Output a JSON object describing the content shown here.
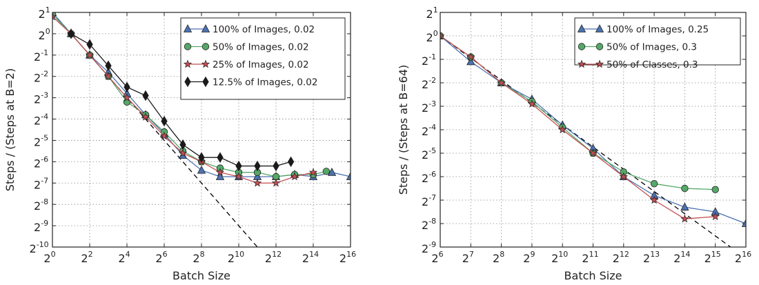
{
  "chart_data": [
    {
      "type": "line",
      "xlabel": "Batch Size",
      "ylabel": "Steps / (Steps at B=2)",
      "xscale": "log2",
      "yscale": "log2",
      "xlim_exp": [
        0,
        16
      ],
      "ylim_exp": [
        -10,
        1
      ],
      "xtick_exps": [
        0,
        2,
        4,
        6,
        8,
        10,
        12,
        14,
        16
      ],
      "ytick_exps": [
        1,
        0,
        -1,
        -2,
        -3,
        -4,
        -5,
        -6,
        -7,
        -8,
        -9,
        -10
      ],
      "grid": true,
      "legend_position": "top-right",
      "reference_line": {
        "style": "dashed",
        "color": "#000000",
        "x_exp": [
          0,
          11
        ],
        "y_exp": [
          1,
          -10
        ]
      },
      "series": [
        {
          "name": "100% of Images, 0.02",
          "marker": "triangle",
          "color": "#4c72b0",
          "x_exp": [
            0,
            1,
            2,
            3,
            4,
            5,
            6,
            7,
            8,
            9,
            10,
            11,
            12,
            13,
            14,
            15,
            16
          ],
          "y_exp": [
            1.0,
            0.0,
            -1.0,
            -1.8,
            -2.8,
            -3.8,
            -4.7,
            -5.7,
            -6.4,
            -6.7,
            -6.7,
            -6.7,
            -6.7,
            -6.6,
            -6.7,
            -6.5,
            -6.7
          ]
        },
        {
          "name": "50% of Images, 0.02",
          "marker": "circle",
          "color": "#55a868",
          "x_exp": [
            0,
            1,
            2,
            3,
            4,
            5,
            6,
            7,
            8,
            9,
            10,
            11,
            12,
            13,
            14,
            14.7
          ],
          "y_exp": [
            0.9,
            0.0,
            -1.0,
            -2.0,
            -3.2,
            -3.8,
            -4.6,
            -5.5,
            -6.0,
            -6.3,
            -6.5,
            -6.5,
            -6.7,
            -6.6,
            -6.6,
            -6.45
          ]
        },
        {
          "name": "25% of Images, 0.02",
          "marker": "star",
          "color": "#c44e52",
          "x_exp": [
            0,
            1,
            2,
            3,
            4,
            5,
            6,
            7,
            8,
            9,
            10,
            11,
            12,
            13,
            14
          ],
          "y_exp": [
            0.8,
            0.0,
            -1.0,
            -2.0,
            -3.0,
            -3.9,
            -4.8,
            -5.6,
            -6.0,
            -6.5,
            -6.7,
            -7.0,
            -7.0,
            -6.7,
            -6.5
          ]
        },
        {
          "name": "12.5% of Images, 0.02",
          "marker": "diamond",
          "color": "#1a1a1a",
          "x_exp": [
            1,
            2,
            3,
            4,
            5,
            6,
            7,
            8,
            9,
            10,
            11,
            12,
            12.8
          ],
          "y_exp": [
            0.0,
            -0.5,
            -1.5,
            -2.5,
            -2.9,
            -4.1,
            -5.2,
            -5.8,
            -5.8,
            -6.2,
            -6.2,
            -6.2,
            -6.0
          ]
        }
      ]
    },
    {
      "type": "line",
      "xlabel": "Batch Size",
      "ylabel": "Steps / (Steps at B=64)",
      "xscale": "log2",
      "yscale": "log2",
      "xlim_exp": [
        6,
        16
      ],
      "ylim_exp": [
        -9,
        1
      ],
      "xtick_exps": [
        6,
        7,
        8,
        9,
        10,
        11,
        12,
        13,
        14,
        15,
        16
      ],
      "ytick_exps": [
        1,
        0,
        -1,
        -2,
        -3,
        -4,
        -5,
        -6,
        -7,
        -8,
        -9
      ],
      "grid": true,
      "legend_position": "top-right",
      "reference_line": {
        "style": "dashed",
        "color": "#000000",
        "x_exp": [
          6,
          15.5
        ],
        "y_exp": [
          0,
          -9
        ]
      },
      "series": [
        {
          "name": "100% of Images, 0.25",
          "marker": "triangle",
          "color": "#4c72b0",
          "x_exp": [
            6,
            7,
            8,
            9,
            10,
            11,
            12,
            13,
            14,
            15,
            16
          ],
          "y_exp": [
            0.0,
            -1.1,
            -2.0,
            -2.7,
            -3.8,
            -4.8,
            -6.0,
            -6.8,
            -7.3,
            -7.5,
            -8.0
          ]
        },
        {
          "name": "50% of Images, 0.3",
          "marker": "circle",
          "color": "#55a868",
          "x_exp": [
            6,
            7,
            8,
            9,
            10,
            11,
            12,
            13,
            14,
            15
          ],
          "y_exp": [
            0.0,
            -0.9,
            -2.0,
            -2.8,
            -3.9,
            -5.0,
            -5.8,
            -6.3,
            -6.5,
            -6.55
          ]
        },
        {
          "name": "50% of Classes, 0.3",
          "marker": "star",
          "color": "#c44e52",
          "x_exp": [
            6,
            7,
            8,
            9,
            10,
            11,
            12,
            13,
            14,
            15
          ],
          "y_exp": [
            0.0,
            -0.9,
            -2.0,
            -2.9,
            -4.0,
            -5.0,
            -6.0,
            -7.0,
            -7.8,
            -7.7
          ]
        }
      ]
    }
  ]
}
